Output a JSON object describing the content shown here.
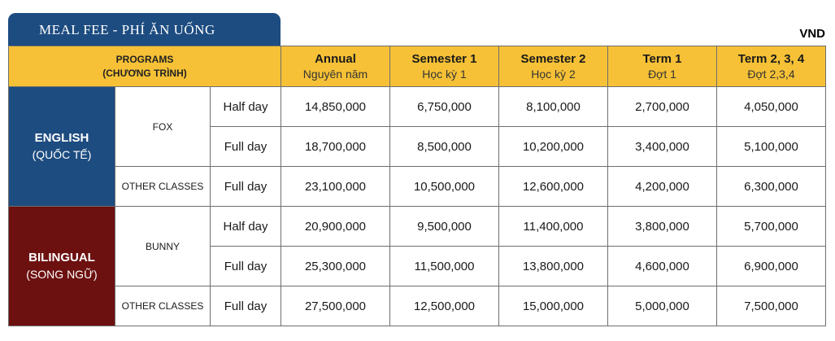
{
  "title": "MEAL FEE - PHÍ ĂN UỐNG",
  "currency": "VND",
  "headers": {
    "programs": [
      "PROGRAMS",
      "(CHƯƠNG TRÌNH)"
    ],
    "columns": [
      {
        "label": "Annual",
        "sub": "Nguyên năm"
      },
      {
        "label": "Semester 1",
        "sub": "Học kỳ 1"
      },
      {
        "label": "Semester 2",
        "sub": "Học kỳ 2"
      },
      {
        "label": "Term 1",
        "sub": "Đợt 1"
      },
      {
        "label": "Term 2, 3, 4",
        "sub": "Đợt 2,3,4"
      }
    ]
  },
  "groups": [
    {
      "name": "ENGLISH",
      "sub": "(QUỐC TẾ)",
      "color": "#1d4c80",
      "classes": [
        {
          "name": "FOX",
          "rows": [
            {
              "duration": "Half day",
              "values": [
                "14,850,000",
                "6,750,000",
                "8,100,000",
                "2,700,000",
                "4,050,000"
              ]
            },
            {
              "duration": "Full day",
              "values": [
                "18,700,000",
                "8,500,000",
                "10,200,000",
                "3,400,000",
                "5,100,000"
              ]
            }
          ]
        },
        {
          "name": "OTHER CLASSES",
          "rows": [
            {
              "duration": "Full day",
              "values": [
                "23,100,000",
                "10,500,000",
                "12,600,000",
                "4,200,000",
                "6,300,000"
              ]
            }
          ]
        }
      ]
    },
    {
      "name": "BILINGUAL",
      "sub": "(SONG NGỮ)",
      "color": "#6d1010",
      "classes": [
        {
          "name": "BUNNY",
          "rows": [
            {
              "duration": "Half day",
              "values": [
                "20,900,000",
                "9,500,000",
                "11,400,000",
                "3,800,000",
                "5,700,000"
              ]
            },
            {
              "duration": "Full day",
              "values": [
                "25,300,000",
                "11,500,000",
                "13,800,000",
                "4,600,000",
                "6,900,000"
              ]
            }
          ]
        },
        {
          "name": "OTHER CLASSES",
          "rows": [
            {
              "duration": "Full day",
              "values": [
                "27,500,000",
                "12,500,000",
                "15,000,000",
                "5,000,000",
                "7,500,000"
              ]
            }
          ]
        }
      ]
    }
  ],
  "header_color": "#f6c136"
}
